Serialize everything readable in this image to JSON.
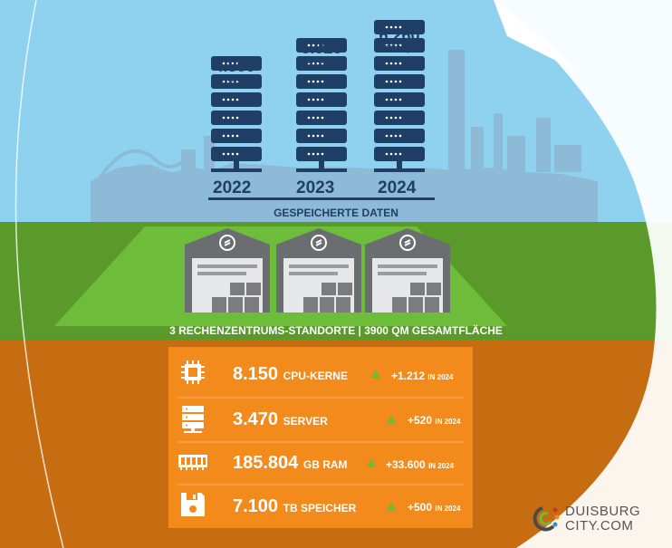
{
  "colors": {
    "sky": "#8fd2f0",
    "grass": "#5a9a2b",
    "soil": "#c66d11",
    "panel": "#f28a1c",
    "navy": "#1f3f66",
    "warehouse": "#6b6e70",
    "accent_green": "#6ebd3a"
  },
  "storage": {
    "years": [
      {
        "year": "2022",
        "value": "4.800",
        "unit": "Terrabyte",
        "racks": 6
      },
      {
        "year": "2023",
        "value": "5.920",
        "unit": "Terrabyte",
        "racks": 7
      },
      {
        "year": "2024",
        "value": "6.260",
        "unit": "Terrabyte",
        "racks": 8
      }
    ],
    "label": "GESPEICHERTE DATEN"
  },
  "datacenters": {
    "label": "3 RECHENZENTRUMS-STANDORTE | 3900 QM GESAMTFLÄCHE",
    "count": 3
  },
  "stats": [
    {
      "icon": "cpu-icon",
      "value": "8.150",
      "unit": "CPU-KERNE",
      "delta": "+1.212",
      "delta_suffix": "IN 2024"
    },
    {
      "icon": "server-icon",
      "value": "3.470",
      "unit": "SERVER",
      "delta": "+520",
      "delta_suffix": "IN 2024"
    },
    {
      "icon": "ram-icon",
      "value": "185.804",
      "unit": "GB RAM",
      "delta": "+33.600",
      "delta_suffix": "IN 2024"
    },
    {
      "icon": "floppy-disk-icon",
      "value": "7.100",
      "unit": "TB SPEICHER",
      "delta": "+500",
      "delta_suffix": "IN 2024"
    }
  ],
  "brand": {
    "line1": "DUISBURG",
    "line2": "CITY.COM",
    "logo": "duisburg-city-logo"
  }
}
